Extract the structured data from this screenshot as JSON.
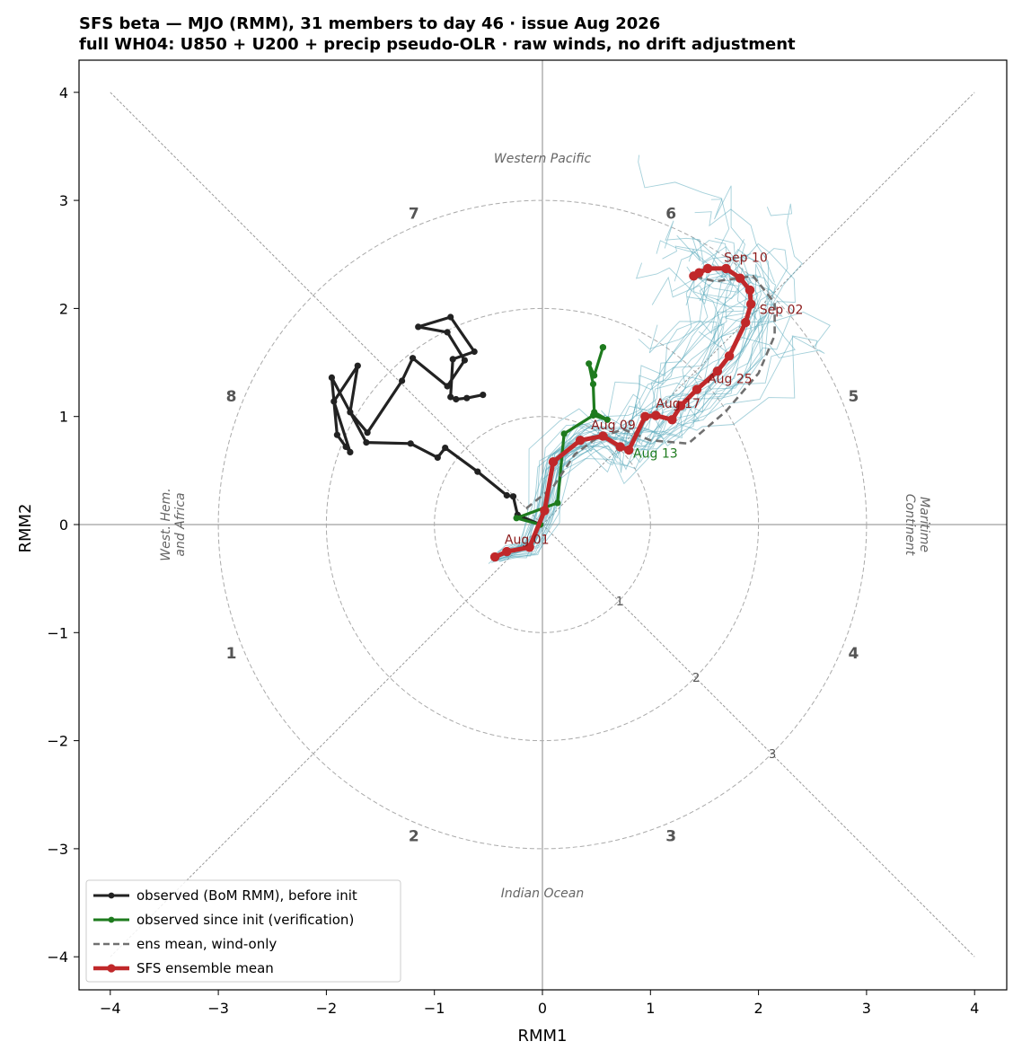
{
  "chart_data": {
    "type": "line",
    "title_line1": "SFS beta — MJO (RMM), 31 members to day 46 · issue Aug 2026",
    "title_line2": "full WH04: U850 + U200 + precip pseudo-OLR · raw winds, no drift adjustment",
    "xlabel": "RMM1",
    "ylabel": "RMM2",
    "xlim": [
      -4.3,
      4.3
    ],
    "ylim": [
      -4.3,
      4.3
    ],
    "xticks": [
      -4,
      -3,
      -2,
      -1,
      0,
      1,
      2,
      3,
      4
    ],
    "yticks": [
      -4,
      -3,
      -2,
      -1,
      0,
      1,
      2,
      3,
      4
    ],
    "tick_labels": [
      "−4",
      "−3",
      "−2",
      "−1",
      "0",
      "1",
      "2",
      "3",
      "4"
    ],
    "rings": [
      1,
      2,
      3
    ],
    "ring_labels": [
      "1",
      "2",
      "3"
    ],
    "phases": [
      {
        "label": "1",
        "x": -2.88,
        "y": -1.19
      },
      {
        "label": "2",
        "x": -1.19,
        "y": -2.88
      },
      {
        "label": "3",
        "x": 1.19,
        "y": -2.88
      },
      {
        "label": "4",
        "x": 2.88,
        "y": -1.19
      },
      {
        "label": "5",
        "x": 2.88,
        "y": 1.19
      },
      {
        "label": "6",
        "x": 1.19,
        "y": 2.88
      },
      {
        "label": "7",
        "x": -1.19,
        "y": 2.88
      },
      {
        "label": "8",
        "x": -2.88,
        "y": 1.19
      }
    ],
    "regions": {
      "top": "Western Pacific",
      "bottom": "Indian Ocean",
      "left_line1": "West. Hem.",
      "left_line2": "and Africa",
      "right_line1": "Maritime",
      "right_line2": "Continent"
    },
    "legend": [
      {
        "label": "observed (BoM RMM), before init",
        "color": "#222222",
        "style": "solid-marker"
      },
      {
        "label": "observed since init (verification)",
        "color": "#1e7b1e",
        "style": "solid-marker"
      },
      {
        "label": "ens mean, wind-only",
        "color": "#707070",
        "style": "dashed"
      },
      {
        "label": "SFS ensemble mean",
        "color": "#c0282a",
        "style": "thick-marker"
      }
    ],
    "series": [
      {
        "name": "observed (BoM RMM), before init",
        "color": "#222222",
        "x": [
          -0.55,
          -0.7,
          -0.8,
          -0.85,
          -0.83,
          -0.63,
          -0.85,
          -1.15,
          -0.88,
          -0.72,
          -0.88,
          -1.2,
          -1.3,
          -1.62,
          -1.78,
          -1.71,
          -1.93,
          -1.78,
          -1.82,
          -1.9,
          -1.95,
          -1.63,
          -1.22,
          -0.97,
          -0.9,
          -0.6,
          -0.33,
          -0.27,
          -0.23,
          -0.02
        ],
        "y": [
          1.2,
          1.17,
          1.16,
          1.18,
          1.53,
          1.6,
          1.92,
          1.83,
          1.78,
          1.52,
          1.28,
          1.54,
          1.33,
          0.85,
          1.04,
          1.47,
          1.14,
          0.67,
          0.72,
          0.83,
          1.36,
          0.76,
          0.75,
          0.62,
          0.71,
          0.49,
          0.27,
          0.26,
          0.09,
          0.0
        ]
      },
      {
        "name": "observed since init (verification)",
        "color": "#1e7b1e",
        "x": [
          -0.02,
          -0.24,
          0.14,
          0.2,
          0.47,
          0.6,
          0.48,
          0.47,
          0.43,
          0.48,
          0.56,
          0.56
        ],
        "y": [
          0.0,
          0.06,
          0.2,
          0.84,
          1.01,
          0.97,
          1.04,
          1.3,
          1.49,
          1.38,
          1.64,
          1.64
        ]
      },
      {
        "name": "ens mean, wind-only",
        "color": "#707070",
        "x": [
          -0.15,
          0.1,
          0.3,
          0.5,
          0.75,
          1.0,
          1.35,
          1.7,
          2.0,
          2.15,
          2.15,
          1.95,
          1.6,
          1.4
        ],
        "y": [
          0.15,
          0.35,
          0.65,
          0.8,
          0.88,
          0.78,
          0.75,
          1.05,
          1.4,
          1.75,
          2.05,
          2.3,
          2.25,
          2.3
        ]
      },
      {
        "name": "SFS ensemble mean",
        "color": "#c0282a",
        "x": [
          -0.44,
          -0.33,
          -0.12,
          0.02,
          0.1,
          0.35,
          0.56,
          0.72,
          0.8,
          0.95,
          1.05,
          1.2,
          1.28,
          1.43,
          1.62,
          1.73,
          1.88,
          1.93,
          1.92,
          1.83,
          1.7,
          1.53,
          1.45,
          1.4
        ],
        "y": [
          -0.3,
          -0.25,
          -0.21,
          0.13,
          0.58,
          0.78,
          0.82,
          0.72,
          0.69,
          1.0,
          1.01,
          0.97,
          1.1,
          1.25,
          1.42,
          1.56,
          1.87,
          2.04,
          2.17,
          2.28,
          2.37,
          2.37,
          2.33,
          2.3
        ]
      }
    ],
    "date_labels": [
      {
        "text": "Aug 01",
        "x": -0.35,
        "y": -0.18,
        "color": "#8b1a1a"
      },
      {
        "text": "Aug 09",
        "x": 0.45,
        "y": 0.88,
        "color": "#8b1a1a"
      },
      {
        "text": "Aug 13",
        "x": 0.84,
        "y": 0.62,
        "color": "#1e7b1e"
      },
      {
        "text": "Aug 17",
        "x": 1.05,
        "y": 1.08,
        "color": "#8b1a1a"
      },
      {
        "text": "Aug 25",
        "x": 1.53,
        "y": 1.31,
        "color": "#8b1a1a"
      },
      {
        "text": "Sep 02",
        "x": 2.01,
        "y": 1.95,
        "color": "#8b1a1a"
      },
      {
        "text": "Sep 10",
        "x": 1.68,
        "y": 2.43,
        "color": "#8b1a1a"
      }
    ],
    "member_color": "#5aaabb",
    "member_count": 31
  }
}
